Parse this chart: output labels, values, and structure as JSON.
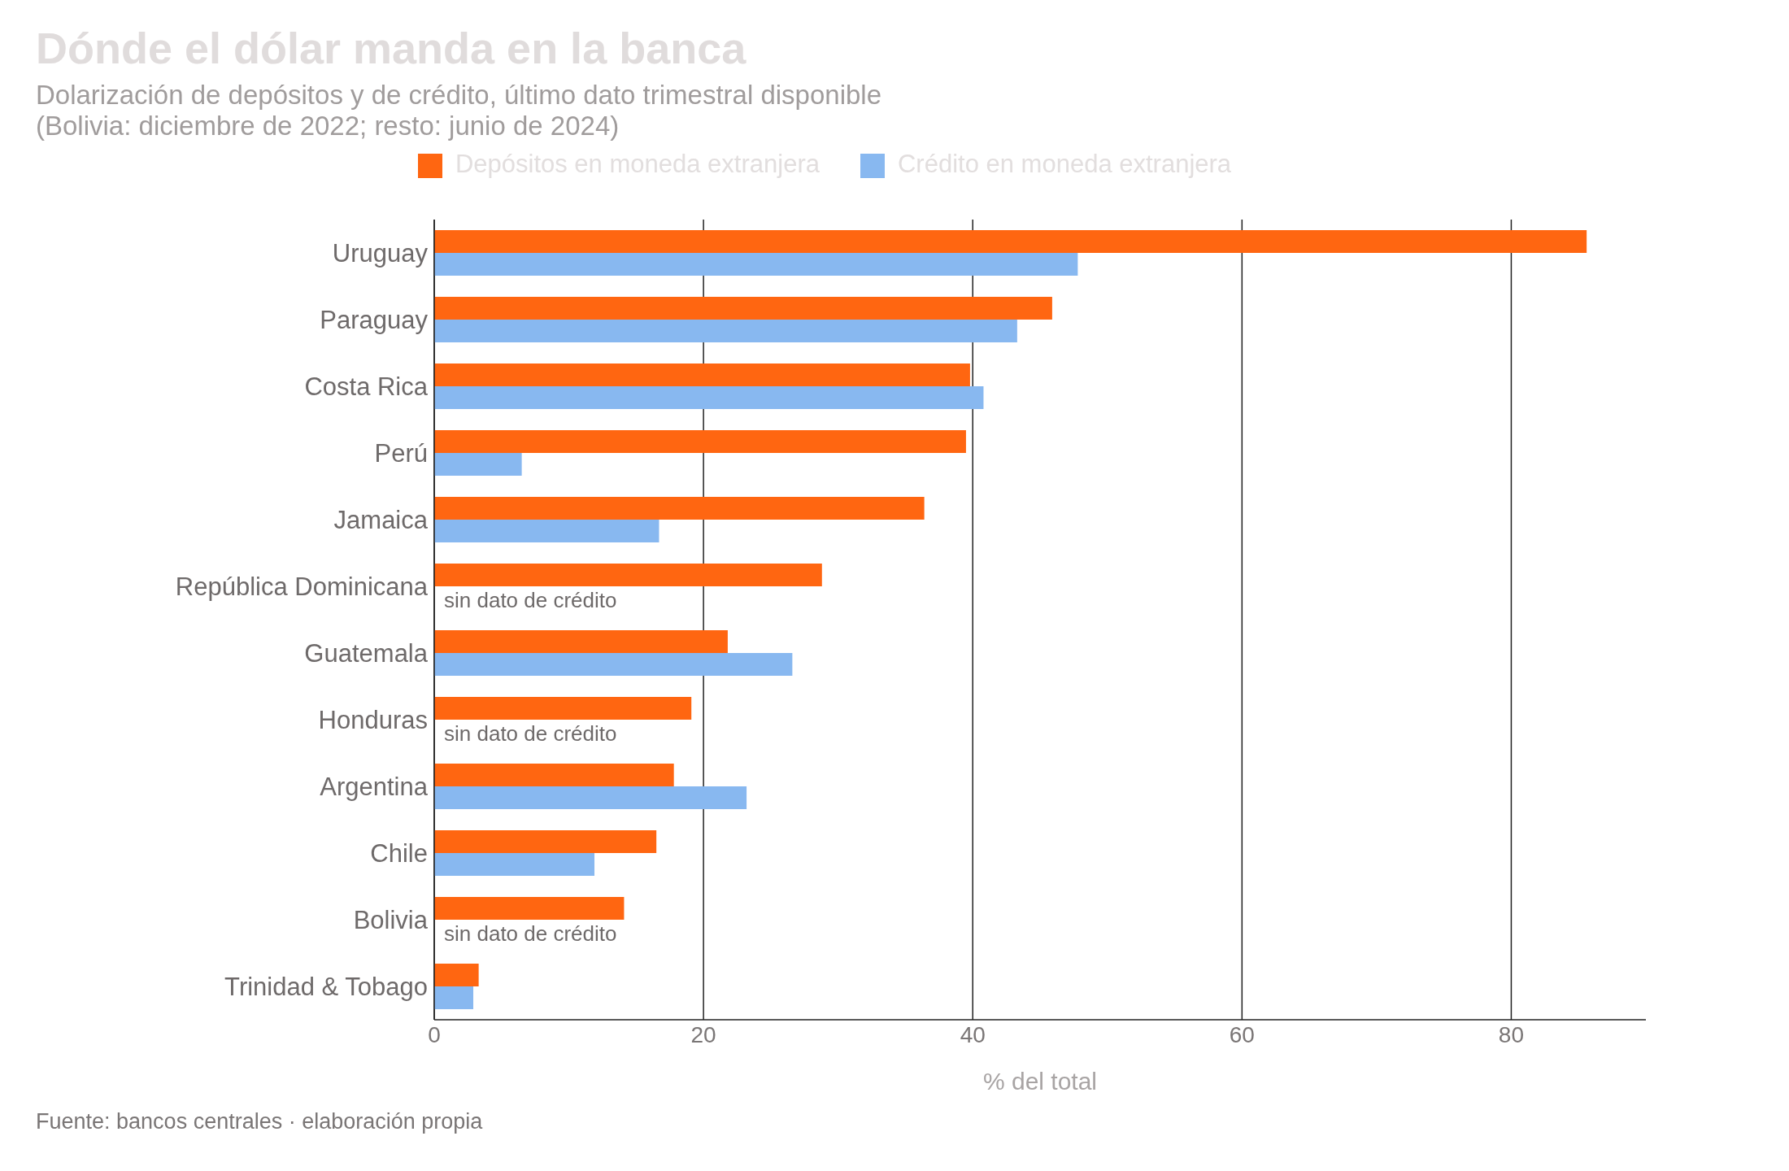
{
  "chart_data": {
    "type": "bar",
    "orientation": "horizontal",
    "title": "Dónde el dólar manda en la banca",
    "subtitle": "Dolarización de depósitos y de crédito, último dato trimestral disponible\n(Bolivia: diciembre de 2022; resto: junio de 2024)",
    "xlabel": "% del total",
    "categories": [
      "Uruguay",
      "Paraguay",
      "Costa Rica",
      "Perú",
      "Jamaica",
      "República Dominicana",
      "Guatemala",
      "Honduras",
      "Argentina",
      "Chile",
      "Bolivia",
      "Trinidad & Tobago"
    ],
    "series": [
      {
        "name": "Depósitos en moneda extranjera",
        "color": "#ff6611",
        "values": [
          85.6,
          45.9,
          39.8,
          39.5,
          36.4,
          28.8,
          21.8,
          19.1,
          17.8,
          16.5,
          14.1,
          3.3
        ]
      },
      {
        "name": "Crédito en moneda extranjera",
        "color": "#88b8f0",
        "values": [
          47.8,
          43.3,
          40.8,
          6.5,
          16.7,
          null,
          26.6,
          null,
          23.2,
          11.9,
          null,
          2.9
        ]
      }
    ],
    "xlim": [
      0,
      90
    ],
    "xticks": [
      0,
      20,
      40,
      60,
      80
    ],
    "grid": "x",
    "legend": "top",
    "annotations": [
      {
        "text": "sin dato de crédito",
        "y": "República Dominicana"
      },
      {
        "text": "sin dato de crédito",
        "y": "Honduras"
      },
      {
        "text": "sin dato de crédito",
        "y": "Bolivia"
      },
      "Fuente: bancos centrales · elaboración propia"
    ]
  }
}
